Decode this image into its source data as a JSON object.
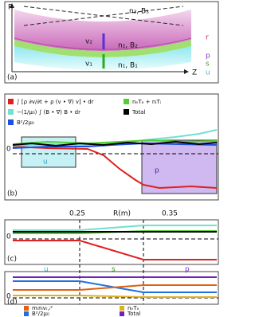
{
  "panel_a": {
    "label": "(a)",
    "axis_r": "R",
    "axis_z": "Z",
    "layer3": "n₃, B₃",
    "layer2": "n₂, B₂",
    "layer1": "n₁, B₁",
    "v2": "v₂",
    "v1": "v₁",
    "regions": [
      "r",
      "p",
      "s",
      "u"
    ]
  },
  "panel_b": {
    "label": "(b)",
    "legend": [
      "∫ [ρ ∂v/∂t + ρ (v • ∇) v] • dr",
      "−(1/μ₀) ∫ (B • ∇) B • dr",
      "B²/2μ₀",
      "nₑTₑ + nᵢTᵢ",
      "Total"
    ],
    "zero": "0",
    "box_u": "u",
    "box_p": "p",
    "xticks": [
      "0.25",
      "0.35"
    ],
    "xlabel": "R(m)"
  },
  "panel_c": {
    "label": "(c)",
    "zero": "0",
    "regions": [
      "u",
      "s",
      "p"
    ]
  },
  "panel_d": {
    "label": "(d)",
    "zero": "0",
    "legend": [
      "mᵢnᵢvᵣ,ᵢ²",
      "nₑTₑ",
      "B²/2μ₀",
      "Total"
    ]
  }
}
